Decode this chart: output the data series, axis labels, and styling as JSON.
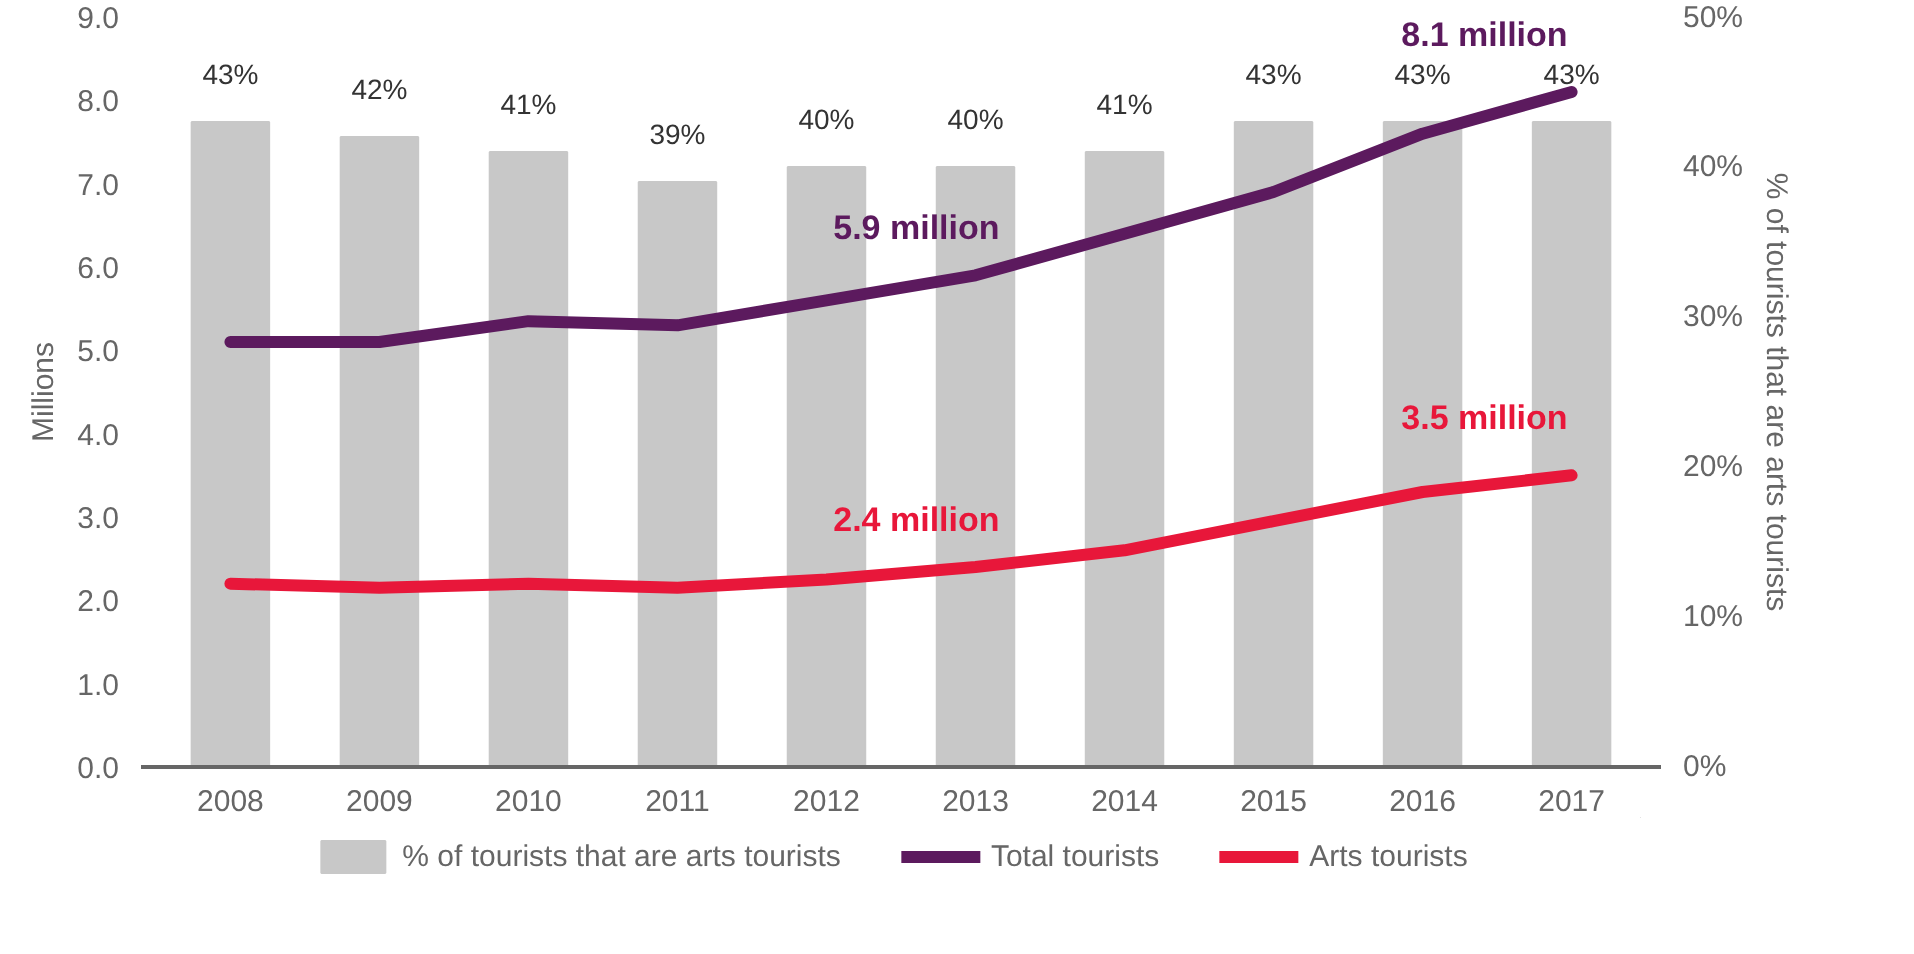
{
  "chart_data": {
    "type": "line",
    "ylabel": "Millions",
    "y2label": "% of tourists that are arts tourists",
    "categories": [
      "2008",
      "2009",
      "2010",
      "2011",
      "2012",
      "2013",
      "2014",
      "2015",
      "2016",
      "2017"
    ],
    "series": [
      {
        "name": "% of tourists that are arts tourists",
        "type": "bar",
        "axis": "y2",
        "color": "#c8c8c8",
        "values": [
          43,
          42,
          41,
          39,
          40,
          40,
          41,
          43,
          43,
          43
        ],
        "value_labels": [
          "43%",
          "42%",
          "41%",
          "39%",
          "40%",
          "40%",
          "41%",
          "43%",
          "43%",
          "43%"
        ]
      },
      {
        "name": "Total tourists",
        "color": "#5c1a5e",
        "values": [
          5.1,
          5.1,
          5.35,
          5.3,
          5.6,
          5.9,
          6.4,
          6.9,
          7.6,
          8.1
        ]
      },
      {
        "name": "Arts tourists",
        "color": "#e8173a",
        "values": [
          2.2,
          2.15,
          2.2,
          2.15,
          2.25,
          2.4,
          2.6,
          2.95,
          3.3,
          3.5
        ]
      }
    ],
    "ylim": [
      0,
      9
    ],
    "yticks": [
      {
        "value": 0,
        "label": "0.0"
      },
      {
        "value": 1,
        "label": "1.0"
      },
      {
        "value": 2,
        "label": "2.0"
      },
      {
        "value": 3,
        "label": "3.0"
      },
      {
        "value": 4,
        "label": "4.0"
      },
      {
        "value": 5,
        "label": "5.0"
      },
      {
        "value": 6,
        "label": "6.0"
      },
      {
        "value": 7,
        "label": "7.0"
      },
      {
        "value": 8,
        "label": "8.0"
      },
      {
        "value": 9,
        "label": "9.0"
      }
    ],
    "y2lim": [
      0,
      50
    ],
    "y2ticks": [
      {
        "value": 0,
        "label": "0%"
      },
      {
        "value": 10,
        "label": "10%"
      },
      {
        "value": 20,
        "label": "20%"
      },
      {
        "value": 30,
        "label": "30%"
      },
      {
        "value": 40,
        "label": "40%"
      },
      {
        "value": 50,
        "label": "50%"
      }
    ],
    "annotations": [
      {
        "text": "5.9 million",
        "x": "2013",
        "y": 5.9
      },
      {
        "text": "2.4 million",
        "x": "2013",
        "y": 2.4
      },
      {
        "text": "8.1 million",
        "x": "2017",
        "y": 8.1
      },
      {
        "text": "3.5 million",
        "x": "2017",
        "y": 3.5
      }
    ],
    "grid": false,
    "legend": "bottom",
    "line_style": "solid",
    "marker": "none"
  }
}
